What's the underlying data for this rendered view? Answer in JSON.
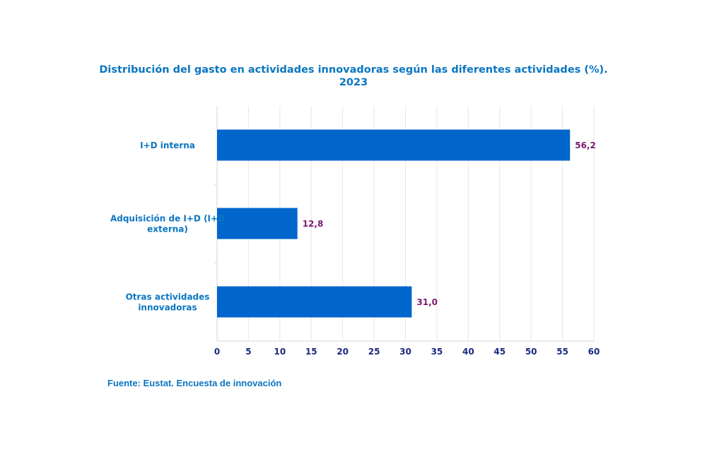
{
  "chart_data": {
    "type": "bar",
    "orientation": "horizontal",
    "title_lines": [
      "Distribución del gasto en actividades innovadoras según las diferentes actividades (%).",
      "2023"
    ],
    "categories": [
      [
        "I+D interna"
      ],
      [
        "Adquisición de I+D (I+D",
        "externa)"
      ],
      [
        "Otras actividades",
        "innovadoras"
      ]
    ],
    "values": [
      56.2,
      12.8,
      31.0
    ],
    "value_labels": [
      "56,2",
      "12,8",
      "31,0"
    ],
    "xlim": [
      0,
      60
    ],
    "xticks": [
      0,
      5,
      10,
      15,
      20,
      25,
      30,
      35,
      40,
      45,
      50,
      55,
      60
    ],
    "grid": "vertical",
    "legend": "none",
    "bar_color": "#0066cc",
    "label_color": "#0a76c2",
    "tick_color": "#1a2a80",
    "value_label_color": "#7a1a6e"
  },
  "source": "Fuente: Eustat. Encuesta de innovación"
}
